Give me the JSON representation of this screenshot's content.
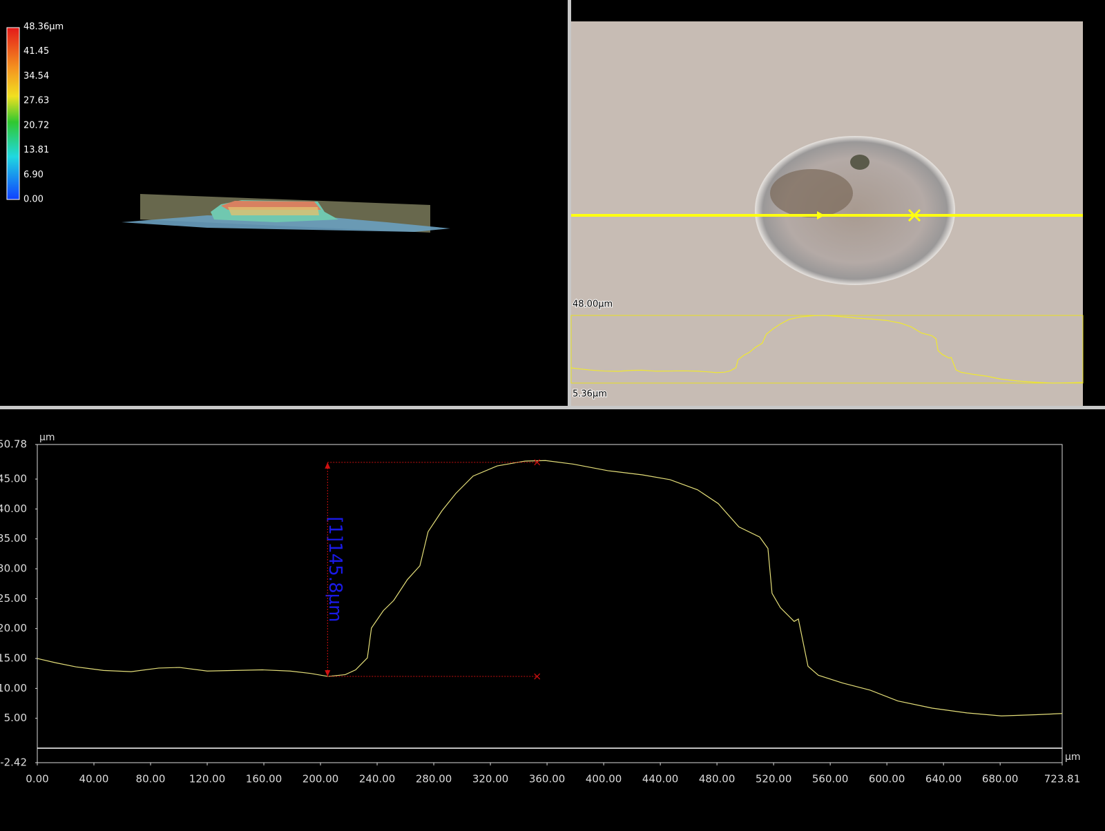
{
  "colorbar": {
    "labels": [
      "48.36µm",
      "41.45",
      "34.54",
      "27.63",
      "20.72",
      "13.81",
      "6.90",
      "0.00"
    ]
  },
  "image_overlay": {
    "top_label": "48.00µm",
    "bottom_label": "5.36µm"
  },
  "chart_data": {
    "type": "line",
    "y_unit": "µm",
    "x_unit": "µm",
    "x": [
      0,
      12.7,
      27.3,
      46.8,
      66.3,
      85.8,
      100.5,
      120,
      139.5,
      159,
      178.5,
      193,
      205.3,
      217.5,
      224.8,
      233.1,
      236,
      244.4,
      251.7,
      261.4,
      270.2,
      276,
      285.8,
      295.6,
      307.8,
      324.8,
      344.3,
      358.9,
      378.5,
      402.9,
      427.3,
      446.8,
      466.3,
      480.9,
      495.5,
      510.2,
      516,
      518.9,
      524.8,
      534.5,
      537.5,
      544.3,
      551.6,
      568.7,
      588.2,
      607.7,
      632,
      656.5,
      680.9,
      705.3,
      723.8
    ],
    "series": [
      {
        "color": "#e6e07a",
        "values": [
          15.0,
          14.3,
          13.6,
          13.0,
          12.8,
          13.4,
          13.5,
          12.9,
          13.0,
          13.1,
          12.9,
          12.5,
          12.0,
          12.3,
          13.1,
          15.1,
          20.1,
          23.0,
          24.7,
          28.2,
          30.5,
          36.2,
          39.7,
          42.6,
          45.5,
          47.2,
          48.0,
          48.1,
          47.5,
          46.4,
          45.7,
          44.9,
          43.2,
          40.9,
          37.0,
          35.3,
          33.4,
          25.9,
          23.5,
          21.2,
          21.6,
          13.7,
          12.2,
          10.9,
          9.7,
          7.9,
          6.7,
          5.9,
          5.4,
          5.6,
          5.8
        ]
      }
    ],
    "xlim": [
      0,
      723.81
    ],
    "ylim": [
      -2.42,
      50.78
    ],
    "xticks": [
      {
        "value": 0,
        "label": "0.00"
      },
      {
        "value": 40,
        "label": "40.00"
      },
      {
        "value": 80,
        "label": "80.00"
      },
      {
        "value": 120,
        "label": "120.00"
      },
      {
        "value": 160,
        "label": "160.00"
      },
      {
        "value": 200,
        "label": "200.00"
      },
      {
        "value": 240,
        "label": "240.00"
      },
      {
        "value": 280,
        "label": "280.00"
      },
      {
        "value": 320,
        "label": "320.00"
      },
      {
        "value": 360,
        "label": "360.00"
      },
      {
        "value": 400,
        "label": "400.00"
      },
      {
        "value": 440,
        "label": "440.00"
      },
      {
        "value": 480,
        "label": "480.00"
      },
      {
        "value": 520,
        "label": "520.00"
      },
      {
        "value": 560,
        "label": "560.00"
      },
      {
        "value": 600,
        "label": "600.00"
      },
      {
        "value": 640,
        "label": "640.00"
      },
      {
        "value": 680,
        "label": "680.00"
      },
      723.81
    ],
    "yticks": [
      -2.42,
      {
        "value": 5,
        "label": "5.00"
      },
      {
        "value": 10,
        "label": "10.00"
      },
      {
        "value": 15,
        "label": "15.00"
      },
      {
        "value": 20,
        "label": "20.00"
      },
      {
        "value": 25,
        "label": "25.00"
      },
      {
        "value": 30,
        "label": "30.00"
      },
      {
        "value": 35,
        "label": "35.00"
      },
      {
        "value": 40,
        "label": "40.00"
      },
      {
        "value": 45,
        "label": "45.00"
      },
      50.78
    ],
    "measurement": {
      "label": "[1]145.8µm",
      "x": [
        205,
        353
      ],
      "y": [
        12.0,
        47.8
      ]
    }
  }
}
